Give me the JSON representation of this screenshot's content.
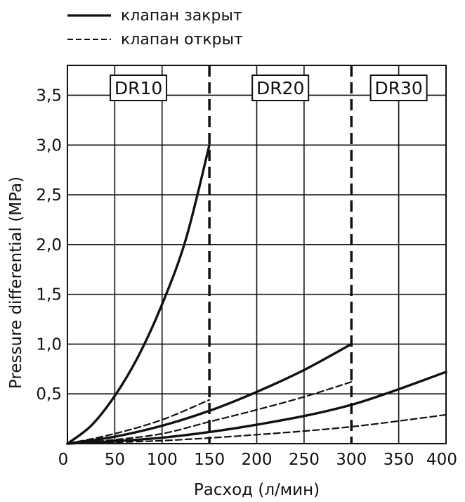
{
  "chart_data": {
    "type": "line",
    "title": "",
    "xlabel": "Расход (л/мин)",
    "ylabel": "Pressure differential (MPa)",
    "xlim": [
      0,
      400
    ],
    "ylim": [
      0,
      3.8
    ],
    "grid": true,
    "legend_position": "top-left",
    "legend": [
      {
        "label": "клапан закрыт",
        "style": "solid"
      },
      {
        "label": "клапан открыт",
        "style": "dashed"
      }
    ],
    "x_ticks": [
      0,
      50,
      100,
      150,
      200,
      250,
      300,
      350,
      400
    ],
    "x_tick_labels": [
      "0",
      "50",
      "100",
      "150",
      "200",
      "250",
      "300",
      "350",
      "400"
    ],
    "y_ticks": [
      0.5,
      1.0,
      1.5,
      2.0,
      2.5,
      3.0,
      3.5
    ],
    "y_tick_labels": [
      "0,5",
      "1,0",
      "1,5",
      "2,0",
      "2,5",
      "3,0",
      "3,5"
    ],
    "regions": [
      {
        "label": "DR10",
        "x_from": 0,
        "x_to": 150
      },
      {
        "label": "DR20",
        "x_from": 150,
        "x_to": 300
      },
      {
        "label": "DR30",
        "x_from": 300,
        "x_to": 400
      }
    ],
    "region_dividers": [
      150,
      300
    ],
    "series": [
      {
        "region": "DR10",
        "style": "solid",
        "x": [
          0,
          25,
          50,
          75,
          100,
          125,
          150
        ],
        "y": [
          0,
          0.18,
          0.48,
          0.88,
          1.4,
          2.05,
          3.0
        ]
      },
      {
        "region": "DR10",
        "style": "dashed",
        "x": [
          0,
          50,
          100,
          150
        ],
        "y": [
          0,
          0.1,
          0.24,
          0.44
        ]
      },
      {
        "region": "DR20",
        "style": "solid",
        "x": [
          0,
          50,
          100,
          150,
          200,
          250,
          300
        ],
        "y": [
          0,
          0.07,
          0.18,
          0.33,
          0.52,
          0.74,
          1.0
        ]
      },
      {
        "region": "DR20",
        "style": "dashed",
        "x": [
          0,
          50,
          100,
          150,
          200,
          250,
          300
        ],
        "y": [
          0,
          0.04,
          0.1,
          0.22,
          0.34,
          0.47,
          0.62
        ]
      },
      {
        "region": "DR30",
        "style": "solid",
        "x": [
          0,
          100,
          200,
          300,
          400
        ],
        "y": [
          0,
          0.06,
          0.19,
          0.39,
          0.72
        ]
      },
      {
        "region": "DR30",
        "style": "dashed",
        "x": [
          0,
          100,
          200,
          300,
          400
        ],
        "y": [
          0,
          0.03,
          0.09,
          0.17,
          0.29
        ]
      }
    ]
  }
}
